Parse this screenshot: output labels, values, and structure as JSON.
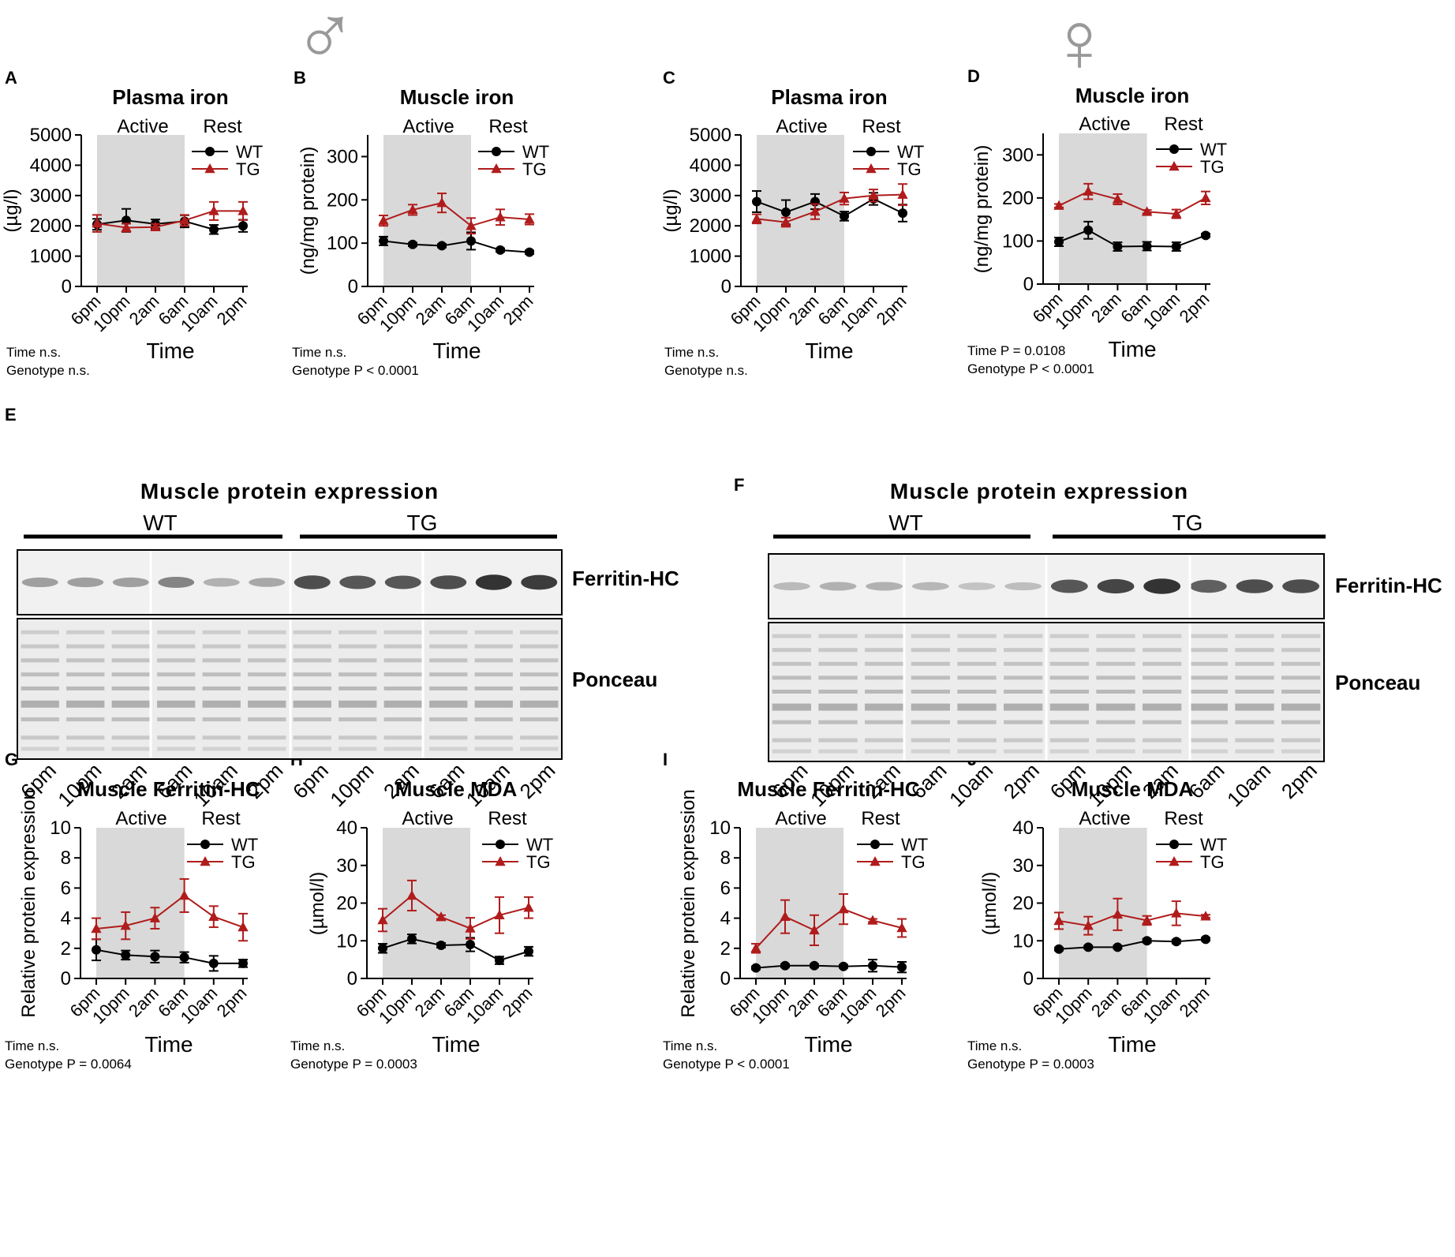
{
  "figure": {
    "male_symbol": "♂",
    "female_symbol": "♀",
    "colors": {
      "wt": "#000000",
      "tg": "#b01c1c",
      "active_shade": "#d9d9d9",
      "symbol": "#999999"
    },
    "shading_labels": {
      "active": "Active",
      "rest": "Rest"
    },
    "legend": {
      "wt": "WT",
      "tg": "TG"
    },
    "time_ticks": [
      "6pm",
      "10pm",
      "2am",
      "6am",
      "10am",
      "2pm"
    ]
  },
  "chart_data": [
    {
      "id": "A",
      "type": "line",
      "panel_label": "A",
      "title": "Plasma iron",
      "xlabel": "Time",
      "ylabel": "(µg/l)",
      "ylim": [
        0,
        5000
      ],
      "yticks": [
        0,
        1000,
        2000,
        3000,
        4000,
        5000
      ],
      "categories": [
        "6pm",
        "10pm",
        "2am",
        "6am",
        "10am",
        "2pm"
      ],
      "stat_time": "Time  n.s.",
      "stat_genotype": "Genotype n.s.",
      "series": [
        {
          "name": "WT",
          "values": [
            2050,
            2180,
            2060,
            2150,
            1880,
            2000
          ],
          "err": [
            180,
            380,
            150,
            200,
            150,
            200
          ]
        },
        {
          "name": "TG",
          "values": [
            2080,
            1940,
            1960,
            2180,
            2490,
            2490
          ],
          "err": [
            280,
            130,
            100,
            180,
            300,
            300
          ]
        }
      ]
    },
    {
      "id": "B",
      "type": "line",
      "panel_label": "B",
      "title": "Muscle iron",
      "xlabel": "Time",
      "ylabel": "(ng/mg protein)",
      "ylim": [
        0,
        350
      ],
      "yticks": [
        0,
        100,
        200,
        300
      ],
      "categories": [
        "6pm",
        "10pm",
        "2am",
        "6am",
        "10am",
        "2pm"
      ],
      "stat_time": "Time  n.s.",
      "stat_genotype": "Genotype  P < 0.0001",
      "series": [
        {
          "name": "WT",
          "values": [
            105,
            97,
            94,
            105,
            84,
            79
          ],
          "err": [
            10,
            4,
            4,
            20,
            4,
            4
          ]
        },
        {
          "name": "TG",
          "values": [
            152,
            177,
            193,
            140,
            160,
            155
          ],
          "err": [
            12,
            12,
            22,
            18,
            18,
            12
          ]
        }
      ]
    },
    {
      "id": "C",
      "type": "line",
      "panel_label": "C",
      "title": "Plasma iron",
      "xlabel": "Time",
      "ylabel": "(µg/l)",
      "ylim": [
        0,
        5000
      ],
      "yticks": [
        0,
        1000,
        2000,
        3000,
        4000,
        5000
      ],
      "categories": [
        "6pm",
        "10pm",
        "2am",
        "6am",
        "10am",
        "2pm"
      ],
      "stat_time": "Time  n.s.",
      "stat_genotype": "Genotype n.s.",
      "series": [
        {
          "name": "WT",
          "values": [
            2800,
            2450,
            2800,
            2320,
            2890,
            2420
          ],
          "err": [
            350,
            400,
            250,
            150,
            200,
            280
          ]
        },
        {
          "name": "TG",
          "values": [
            2230,
            2120,
            2470,
            2900,
            3000,
            3030
          ],
          "err": [
            150,
            150,
            250,
            200,
            200,
            350
          ]
        }
      ]
    },
    {
      "id": "D",
      "type": "line",
      "panel_label": "D",
      "title": "Muscle iron",
      "xlabel": "Time",
      "ylabel": "(ng/mg protein)",
      "ylim": [
        0,
        350
      ],
      "yticks": [
        0,
        100,
        200,
        300
      ],
      "categories": [
        "6pm",
        "10pm",
        "2am",
        "6am",
        "10am",
        "2pm"
      ],
      "stat_time": "Time  P  = 0.0108",
      "stat_genotype": "Genotype P < 0.0001",
      "series": [
        {
          "name": "WT",
          "values": [
            98,
            125,
            87,
            88,
            87,
            113
          ],
          "err": [
            10,
            20,
            10,
            10,
            10,
            4
          ]
        },
        {
          "name": "TG",
          "values": [
            182,
            215,
            197,
            168,
            163,
            200
          ],
          "err": [
            4,
            18,
            12,
            4,
            10,
            15
          ]
        }
      ]
    },
    {
      "id": "G",
      "type": "line",
      "panel_label": "G",
      "title": "Muscle Ferritin-HC",
      "xlabel": "Time",
      "ylabel": "Relative protein expression",
      "ylim": [
        0,
        10
      ],
      "yticks": [
        0,
        2,
        4,
        6,
        8,
        10
      ],
      "categories": [
        "6pm",
        "10pm",
        "2am",
        "6am",
        "10am",
        "2pm"
      ],
      "stat_time": "Time  n.s.",
      "stat_genotype": "Genotype P = 0.0064",
      "series": [
        {
          "name": "WT",
          "values": [
            1.9,
            1.55,
            1.45,
            1.4,
            1.0,
            1.0
          ],
          "err": [
            0.7,
            0.3,
            0.4,
            0.35,
            0.5,
            0.25
          ]
        },
        {
          "name": "TG",
          "values": [
            3.3,
            3.5,
            4.0,
            5.5,
            4.1,
            3.4
          ],
          "err": [
            0.7,
            0.9,
            0.7,
            1.1,
            0.7,
            0.9
          ]
        }
      ]
    },
    {
      "id": "H",
      "type": "line",
      "panel_label": "H",
      "title": "Muscle MDA",
      "xlabel": "Time",
      "ylabel": "(µmol/l)",
      "ylim": [
        0,
        40
      ],
      "yticks": [
        0,
        10,
        20,
        30,
        40
      ],
      "categories": [
        "6pm",
        "10pm",
        "2am",
        "6am",
        "10am",
        "2pm"
      ],
      "stat_time": "Time  n.s.",
      "stat_genotype": "Genotype P = 0.0003",
      "series": [
        {
          "name": "WT",
          "values": [
            8.0,
            10.5,
            8.8,
            9.0,
            4.8,
            7.2
          ],
          "err": [
            1.2,
            1.2,
            0.6,
            1.8,
            1.0,
            1.2
          ]
        },
        {
          "name": "TG",
          "values": [
            15.5,
            22.0,
            16.3,
            13.3,
            16.8,
            18.8
          ],
          "err": [
            3.0,
            4.0,
            0.5,
            2.8,
            4.8,
            2.8
          ]
        }
      ]
    },
    {
      "id": "I",
      "type": "line",
      "panel_label": "I",
      "title": "Muscle Ferritin-HC",
      "xlabel": "Time",
      "ylabel": "Relative protein expression",
      "ylim": [
        0,
        10
      ],
      "yticks": [
        0,
        2,
        4,
        6,
        8,
        10
      ],
      "categories": [
        "6pm",
        "10pm",
        "2am",
        "6am",
        "10am",
        "2pm"
      ],
      "stat_time": "Time  n.s.",
      "stat_genotype": "Genotype P < 0.0001",
      "series": [
        {
          "name": "WT",
          "values": [
            0.7,
            0.85,
            0.85,
            0.8,
            0.85,
            0.75
          ],
          "err": [
            0.1,
            0.1,
            0.1,
            0.1,
            0.4,
            0.35
          ]
        },
        {
          "name": "TG",
          "values": [
            2.0,
            4.1,
            3.2,
            4.6,
            3.85,
            3.35
          ],
          "err": [
            0.3,
            1.1,
            1.0,
            1.0,
            0.1,
            0.6
          ]
        }
      ]
    },
    {
      "id": "J",
      "type": "line",
      "panel_label": "J",
      "title": "Muscle MDA",
      "xlabel": "Time",
      "ylabel": "(µmol/l)",
      "ylim": [
        0,
        40
      ],
      "yticks": [
        0,
        10,
        20,
        30,
        40
      ],
      "categories": [
        "6pm",
        "10pm",
        "2am",
        "6am",
        "10am",
        "2pm"
      ],
      "stat_time": "Time  n.s.",
      "stat_genotype": "Genotype P = 0.0003",
      "series": [
        {
          "name": "WT",
          "values": [
            7.8,
            8.3,
            8.3,
            10.0,
            9.8,
            10.4
          ],
          "err": [
            0.4,
            0.4,
            0.4,
            0.5,
            0.5,
            0.4
          ]
        },
        {
          "name": "TG",
          "values": [
            15.3,
            14.0,
            17.0,
            15.4,
            17.3,
            16.5
          ],
          "err": [
            2.2,
            2.4,
            4.2,
            1.2,
            3.2,
            0.4
          ]
        }
      ]
    }
  ],
  "blots": [
    {
      "id": "E",
      "panel_label": "E",
      "title": "Muscle protein expression",
      "groups": [
        "WT",
        "TG"
      ],
      "bands": [
        "Ferritin-HC",
        "Ponceau"
      ],
      "lanes": [
        "6pm",
        "10pm",
        "2am",
        "6am",
        "10am",
        "2pm",
        "6pm",
        "10pm",
        "2am",
        "6am",
        "10am",
        "2pm"
      ],
      "ferritin_intensity": [
        0.35,
        0.35,
        0.35,
        0.5,
        0.25,
        0.3,
        0.8,
        0.75,
        0.75,
        0.8,
        0.95,
        0.9
      ]
    },
    {
      "id": "F",
      "panel_label": "F",
      "title": "Muscle protein expression",
      "groups": [
        "WT",
        "TG"
      ],
      "bands": [
        "Ferritin-HC",
        "Ponceau"
      ],
      "lanes": [
        "6pm",
        "10pm",
        "2am",
        "6am",
        "10am",
        "2pm",
        "6pm",
        "10pm",
        "2am",
        "6am",
        "10am",
        "2pm"
      ],
      "ferritin_intensity": [
        0.2,
        0.25,
        0.25,
        0.22,
        0.15,
        0.18,
        0.75,
        0.85,
        0.95,
        0.7,
        0.8,
        0.8
      ]
    }
  ]
}
